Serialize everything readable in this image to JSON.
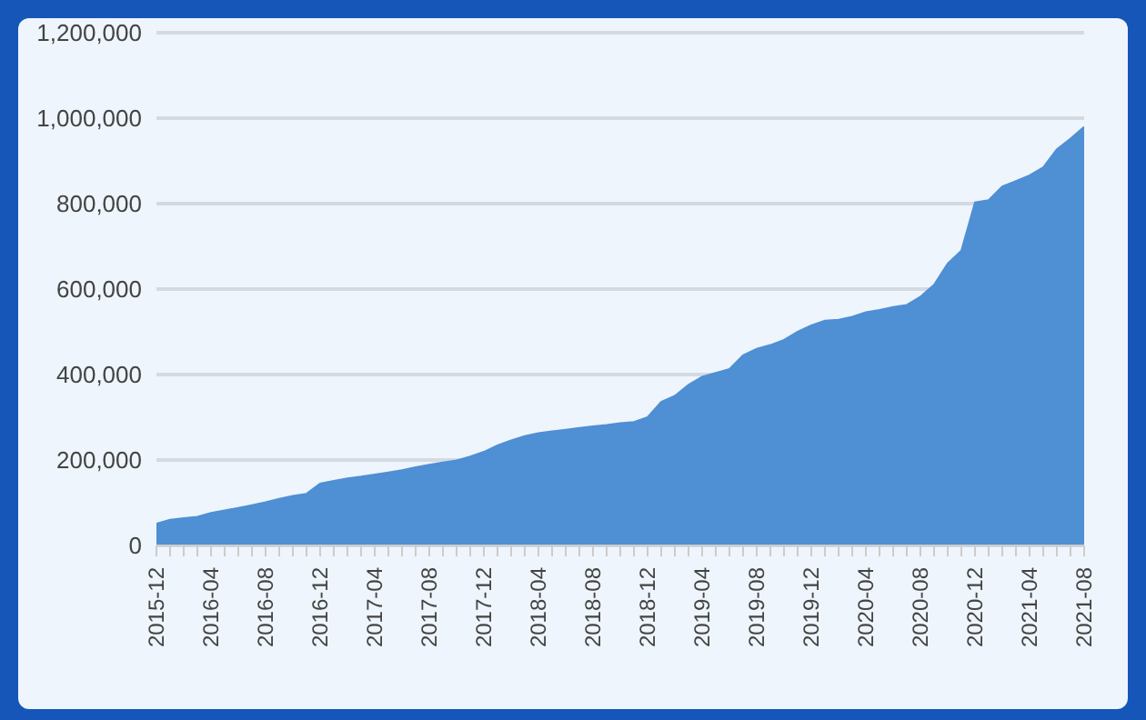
{
  "chart_data": {
    "type": "area",
    "categories": [
      "2015-12",
      null,
      null,
      null,
      "2016-04",
      null,
      null,
      null,
      "2016-08",
      null,
      null,
      null,
      "2016-12",
      null,
      null,
      null,
      "2017-04",
      null,
      null,
      null,
      "2017-08",
      null,
      null,
      null,
      "2017-12",
      null,
      null,
      null,
      "2018-04",
      null,
      null,
      null,
      "2018-08",
      null,
      null,
      null,
      "2018-12",
      null,
      null,
      null,
      "2019-04",
      null,
      null,
      null,
      "2019-08",
      null,
      null,
      null,
      "2019-12",
      null,
      null,
      null,
      "2020-04",
      null,
      null,
      null,
      "2020-08",
      null,
      null,
      null,
      "2020-12",
      null,
      null,
      null,
      "2021-04",
      null,
      null,
      null,
      "2021-08"
    ],
    "series": [
      {
        "color": "#4f8fd4",
        "values": [
          51000,
          60000,
          64000,
          67000,
          76000,
          82000,
          88000,
          94000,
          101000,
          109000,
          116000,
          121000,
          145000,
          151000,
          157000,
          161000,
          166000,
          171000,
          176000,
          183000,
          189000,
          194000,
          199000,
          208000,
          219000,
          234000,
          246000,
          256000,
          263000,
          267000,
          271000,
          275000,
          279000,
          282000,
          286000,
          289000,
          300000,
          336000,
          350000,
          376000,
          395000,
          404000,
          413000,
          445000,
          460000,
          469000,
          481000,
          500000,
          515000,
          526000,
          528000,
          535000,
          546000,
          551000,
          558000,
          563000,
          582000,
          610000,
          660000,
          690000,
          803000,
          808000,
          840000,
          853000,
          866000,
          885000,
          927000,
          952000,
          980000
        ]
      }
    ],
    "ylim": [
      0,
      1200000
    ],
    "yticks": [
      0,
      {
        "value": 200000,
        "label": "200,000"
      },
      {
        "value": 400000,
        "label": "400,000"
      },
      {
        "value": 600000,
        "label": "600,000"
      },
      {
        "value": 800000,
        "label": "800,000"
      },
      {
        "value": 1000000,
        "label": "1,000,000"
      },
      {
        "value": 1200000,
        "label": "1,200,000"
      }
    ],
    "grid": "y",
    "legend": false
  }
}
